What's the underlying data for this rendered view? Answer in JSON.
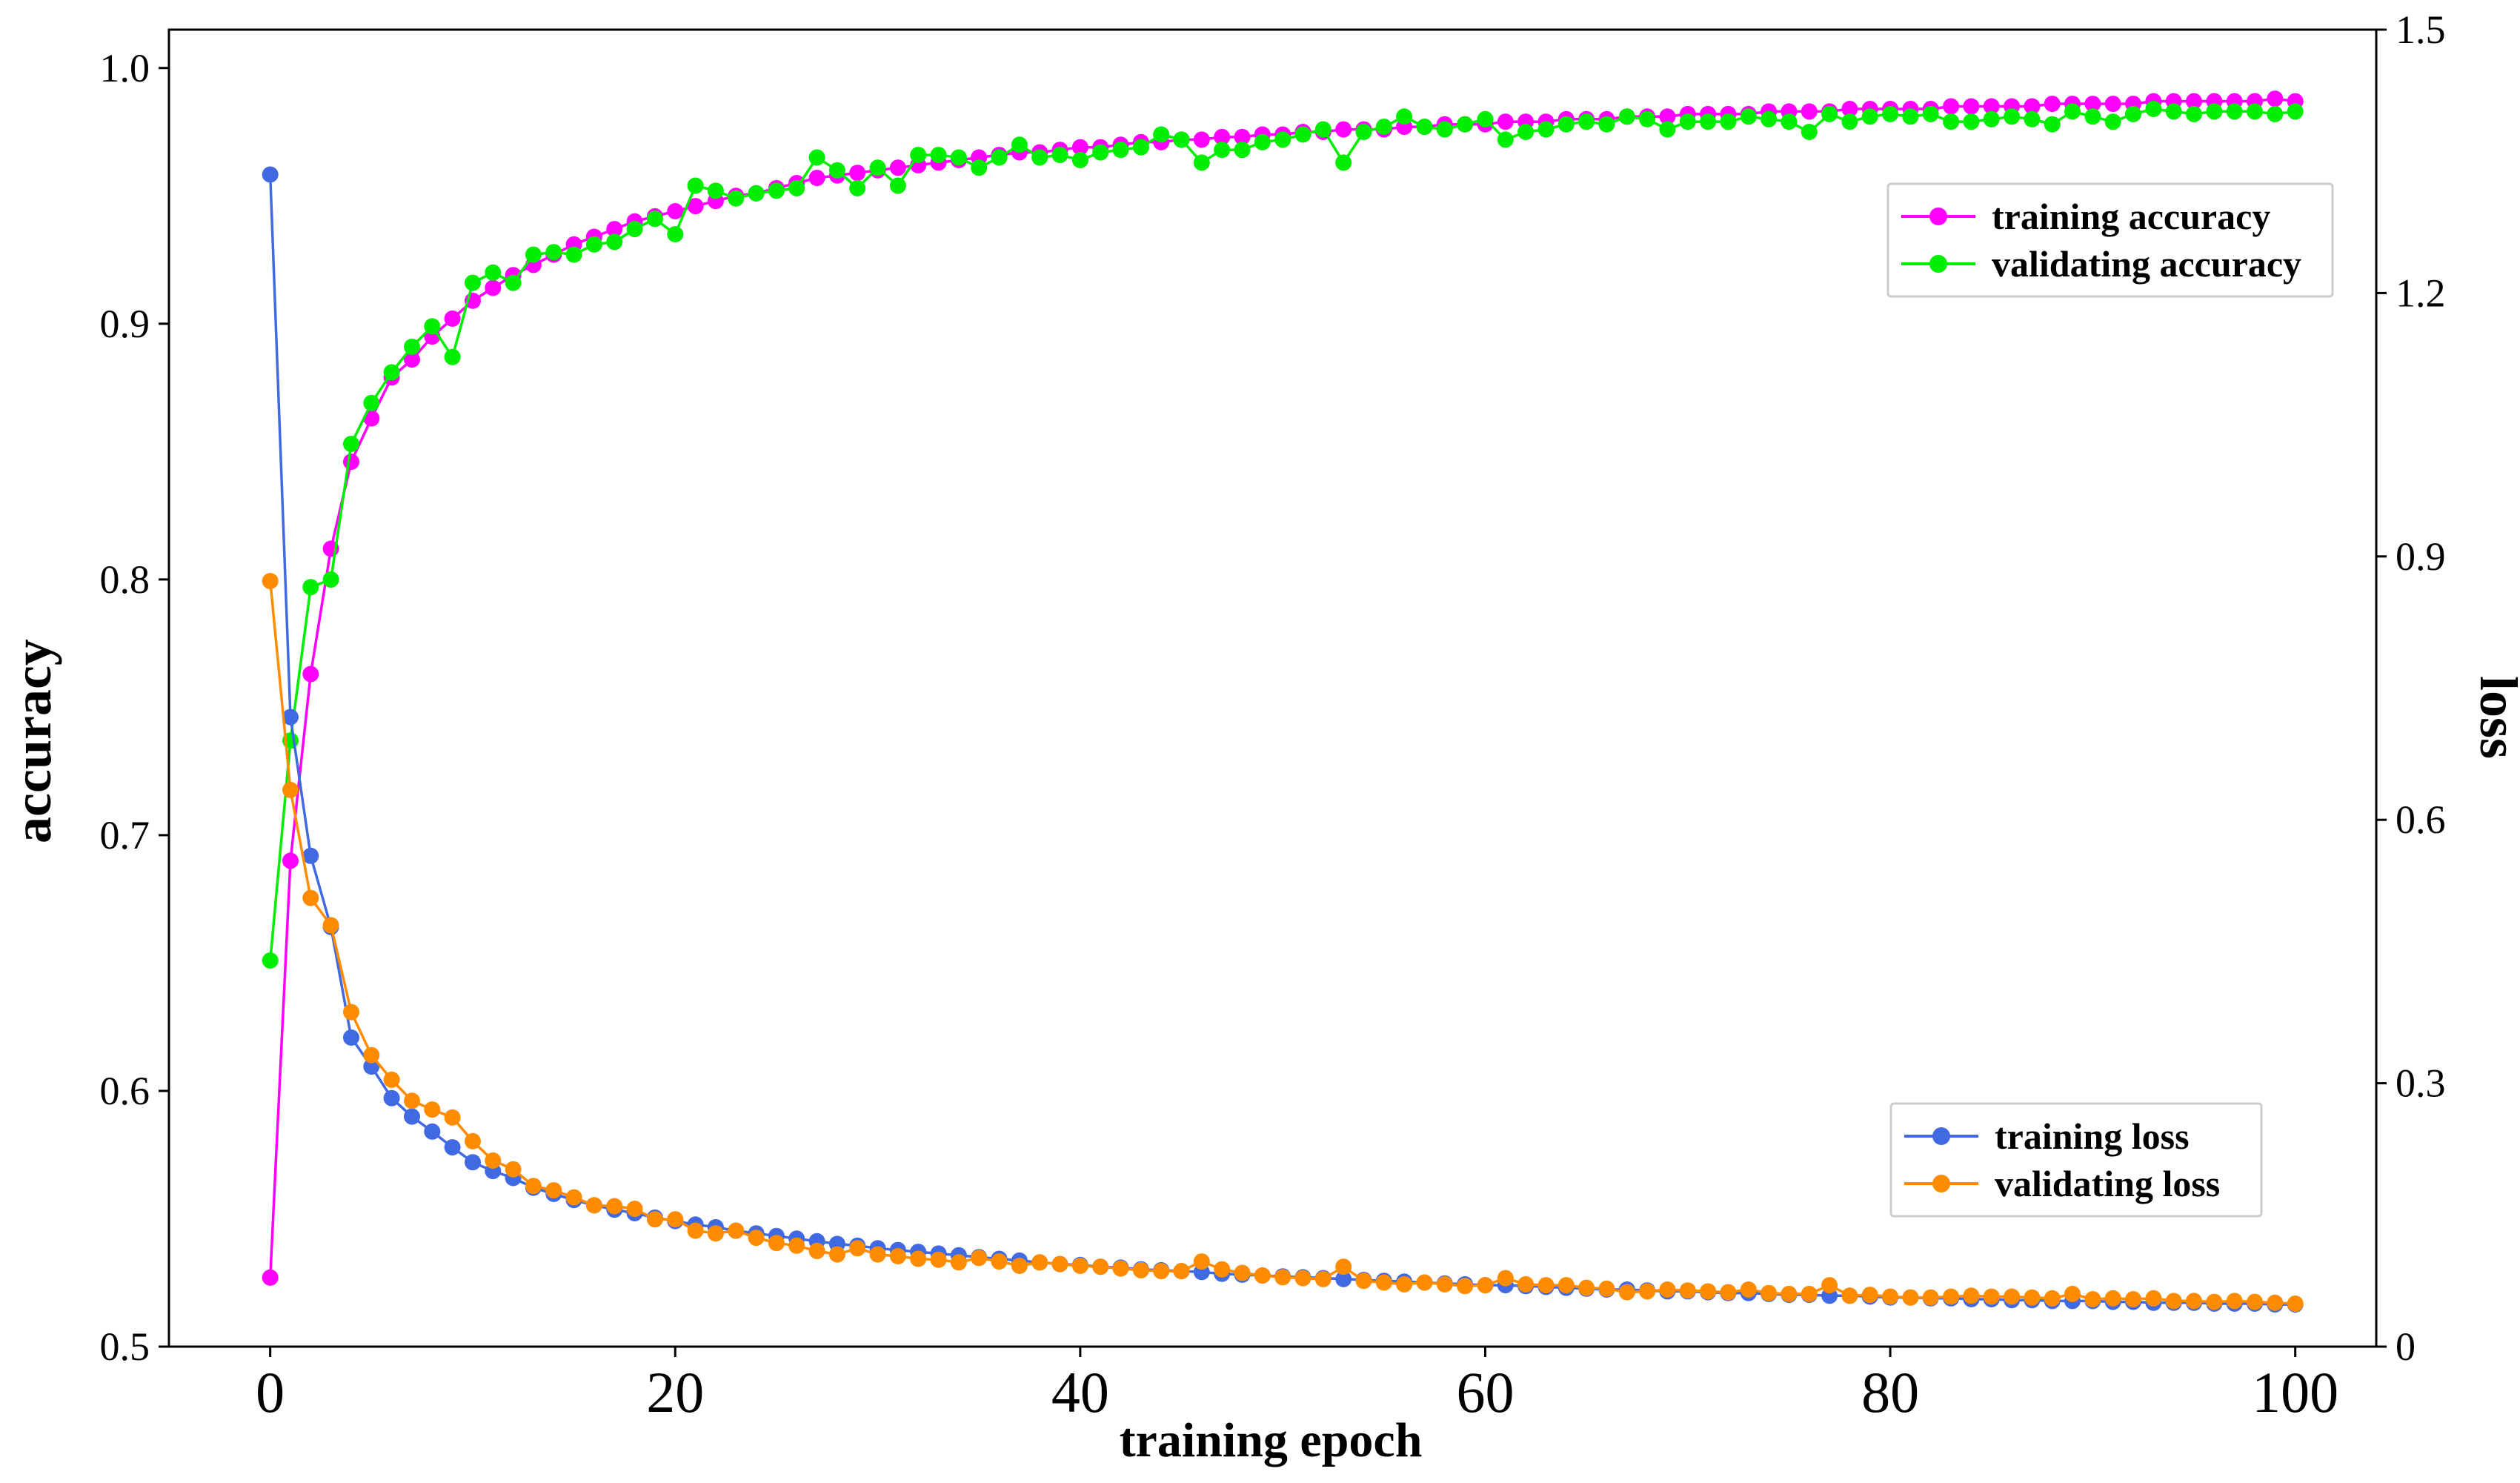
{
  "chart_data": {
    "type": "line",
    "xlabel": "training epoch",
    "ylabel_left": "accuracy",
    "ylabel_right": "loss",
    "xlim": [
      -5,
      104
    ],
    "ylim_left": [
      0.5,
      1.015
    ],
    "ylim_right": [
      0,
      1.5
    ],
    "x_ticks": [
      0,
      20,
      40,
      60,
      80,
      100
    ],
    "x_tick_labels": [
      "0",
      "20",
      "40",
      "60",
      "80",
      "100"
    ],
    "y_left_ticks": [
      0.5,
      0.6,
      0.7,
      0.8,
      0.9,
      1.0
    ],
    "y_left_tick_labels": [
      "0.5",
      "0.6",
      "0.7",
      "0.8",
      "0.9",
      "1.0"
    ],
    "y_right_ticks": [
      0,
      0.3,
      0.6,
      0.9,
      1.2,
      1.5
    ],
    "y_right_tick_labels": [
      "0",
      "0.3",
      "0.6",
      "0.9",
      "1.2",
      "1.5"
    ],
    "colors": {
      "training_accuracy": "#ff00ff",
      "validating_accuracy": "#00ee00",
      "training_loss": "#4169e1",
      "validating_loss": "#ff8c00"
    },
    "legend_accuracy": [
      "training accuracy",
      "validating accuracy"
    ],
    "legend_loss": [
      "training loss",
      "validating loss"
    ],
    "legend_accuracy_position": "upper-right",
    "legend_loss_position": "lower-right",
    "series": [
      {
        "name": "training accuracy",
        "axis": "left",
        "color": "#ff00ff",
        "values": [
          0.527,
          0.69,
          0.763,
          0.812,
          0.846,
          0.863,
          0.879,
          0.886,
          0.895,
          0.902,
          0.909,
          0.914,
          0.919,
          0.923,
          0.927,
          0.931,
          0.934,
          0.937,
          0.94,
          0.942,
          0.944,
          0.946,
          0.948,
          0.95,
          0.951,
          0.953,
          0.955,
          0.957,
          0.958,
          0.959,
          0.96,
          0.961,
          0.962,
          0.963,
          0.964,
          0.965,
          0.966,
          0.967,
          0.967,
          0.968,
          0.969,
          0.969,
          0.97,
          0.971,
          0.971,
          0.972,
          0.972,
          0.973,
          0.973,
          0.974,
          0.974,
          0.975,
          0.975,
          0.976,
          0.976,
          0.976,
          0.977,
          0.977,
          0.978,
          0.978,
          0.978,
          0.979,
          0.979,
          0.979,
          0.98,
          0.98,
          0.98,
          0.981,
          0.981,
          0.981,
          0.982,
          0.982,
          0.982,
          0.982,
          0.983,
          0.983,
          0.983,
          0.983,
          0.984,
          0.984,
          0.984,
          0.984,
          0.984,
          0.985,
          0.985,
          0.985,
          0.985,
          0.985,
          0.986,
          0.986,
          0.986,
          0.986,
          0.986,
          0.987,
          0.987,
          0.987,
          0.987,
          0.987,
          0.987,
          0.988,
          0.987
        ]
      },
      {
        "name": "validating accuracy",
        "axis": "left",
        "color": "#00ee00",
        "values": [
          0.651,
          0.737,
          0.797,
          0.8,
          0.853,
          0.869,
          0.881,
          0.891,
          0.899,
          0.887,
          0.916,
          0.92,
          0.916,
          0.927,
          0.928,
          0.927,
          0.931,
          0.932,
          0.937,
          0.941,
          0.935,
          0.954,
          0.952,
          0.949,
          0.951,
          0.952,
          0.953,
          0.965,
          0.96,
          0.953,
          0.961,
          0.954,
          0.966,
          0.966,
          0.965,
          0.961,
          0.965,
          0.97,
          0.965,
          0.966,
          0.964,
          0.967,
          0.968,
          0.969,
          0.974,
          0.972,
          0.963,
          0.968,
          0.968,
          0.971,
          0.972,
          0.974,
          0.976,
          0.963,
          0.975,
          0.977,
          0.981,
          0.977,
          0.976,
          0.978,
          0.98,
          0.972,
          0.975,
          0.976,
          0.978,
          0.979,
          0.978,
          0.981,
          0.98,
          0.976,
          0.979,
          0.979,
          0.979,
          0.981,
          0.98,
          0.979,
          0.975,
          0.982,
          0.979,
          0.981,
          0.982,
          0.981,
          0.982,
          0.979,
          0.979,
          0.98,
          0.981,
          0.98,
          0.978,
          0.983,
          0.981,
          0.979,
          0.982,
          0.984,
          0.983,
          0.982,
          0.983,
          0.983,
          0.983,
          0.982,
          0.983
        ]
      },
      {
        "name": "training loss",
        "axis": "right",
        "color": "#4169e1",
        "values": [
          1.335,
          0.717,
          0.559,
          0.478,
          0.352,
          0.319,
          0.283,
          0.262,
          0.245,
          0.227,
          0.21,
          0.2,
          0.192,
          0.181,
          0.174,
          0.167,
          0.161,
          0.156,
          0.152,
          0.147,
          0.143,
          0.139,
          0.136,
          0.132,
          0.129,
          0.126,
          0.123,
          0.12,
          0.117,
          0.115,
          0.112,
          0.11,
          0.108,
          0.106,
          0.104,
          0.102,
          0.1,
          0.098,
          0.096,
          0.094,
          0.093,
          0.091,
          0.09,
          0.088,
          0.087,
          0.086,
          0.085,
          0.083,
          0.082,
          0.081,
          0.08,
          0.079,
          0.078,
          0.077,
          0.076,
          0.075,
          0.074,
          0.073,
          0.072,
          0.071,
          0.07,
          0.07,
          0.069,
          0.068,
          0.067,
          0.066,
          0.065,
          0.065,
          0.064,
          0.063,
          0.063,
          0.062,
          0.061,
          0.061,
          0.06,
          0.059,
          0.059,
          0.058,
          0.058,
          0.057,
          0.056,
          0.056,
          0.055,
          0.055,
          0.054,
          0.054,
          0.053,
          0.053,
          0.052,
          0.052,
          0.052,
          0.051,
          0.051,
          0.05,
          0.05,
          0.05,
          0.049,
          0.049,
          0.049,
          0.048,
          0.048
        ]
      },
      {
        "name": "validating loss",
        "axis": "right",
        "color": "#ff8c00",
        "values": [
          0.872,
          0.634,
          0.511,
          0.48,
          0.381,
          0.332,
          0.304,
          0.28,
          0.27,
          0.261,
          0.234,
          0.212,
          0.202,
          0.183,
          0.178,
          0.17,
          0.161,
          0.16,
          0.157,
          0.145,
          0.145,
          0.132,
          0.129,
          0.132,
          0.124,
          0.118,
          0.115,
          0.109,
          0.105,
          0.112,
          0.105,
          0.103,
          0.1,
          0.099,
          0.096,
          0.101,
          0.097,
          0.092,
          0.096,
          0.094,
          0.092,
          0.091,
          0.089,
          0.087,
          0.086,
          0.086,
          0.097,
          0.088,
          0.084,
          0.081,
          0.079,
          0.078,
          0.077,
          0.091,
          0.075,
          0.073,
          0.071,
          0.073,
          0.071,
          0.069,
          0.07,
          0.078,
          0.071,
          0.07,
          0.07,
          0.067,
          0.066,
          0.062,
          0.063,
          0.065,
          0.064,
          0.063,
          0.062,
          0.065,
          0.061,
          0.06,
          0.06,
          0.07,
          0.058,
          0.059,
          0.057,
          0.056,
          0.056,
          0.057,
          0.058,
          0.057,
          0.057,
          0.056,
          0.055,
          0.06,
          0.054,
          0.055,
          0.054,
          0.055,
          0.052,
          0.052,
          0.051,
          0.052,
          0.051,
          0.05,
          0.049
        ]
      }
    ]
  }
}
